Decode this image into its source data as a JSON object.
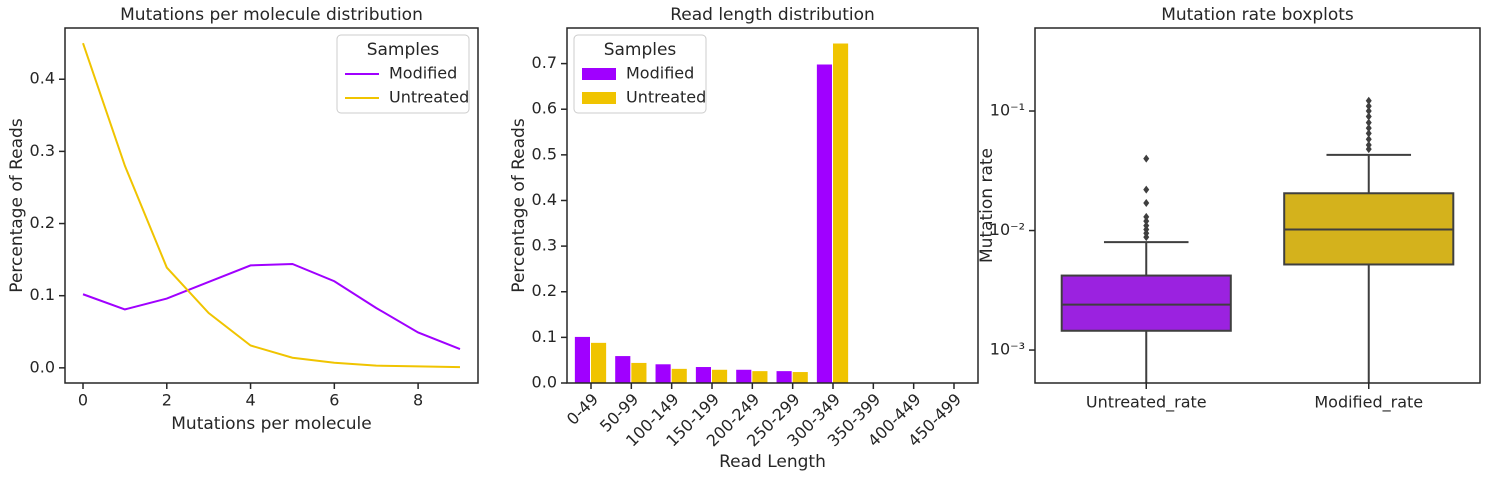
{
  "chart_data": [
    {
      "type": "line",
      "title": "Mutations per molecule distribution",
      "xlabel": "Mutations per molecule",
      "ylabel": "Percentage of Reads",
      "x": [
        0,
        1,
        2,
        3,
        4,
        5,
        6,
        7,
        8,
        9
      ],
      "series": [
        {
          "name": "Modified",
          "color": "#a000ff",
          "values": [
            0.102,
            0.081,
            0.096,
            0.119,
            0.142,
            0.144,
            0.12,
            0.083,
            0.049,
            0.026
          ]
        },
        {
          "name": "Untreated",
          "color": "#f0c400",
          "values": [
            0.45,
            0.28,
            0.139,
            0.076,
            0.031,
            0.014,
            0.007,
            0.003,
            0.002,
            0.001
          ]
        }
      ],
      "xlim": [
        -0.43,
        9.43
      ],
      "xticks": [
        0,
        2,
        4,
        6,
        8
      ],
      "ylim": [
        -0.021,
        0.471
      ],
      "yticks": [
        {
          "value": 0,
          "label": "0.0"
        },
        0.1,
        0.2,
        0.3,
        0.4
      ],
      "legend_title": "Samples",
      "legend": "upper right"
    },
    {
      "type": "bar",
      "title": "Read length distribution",
      "xlabel": "Read Length",
      "ylabel": "Percentage of Reads",
      "categories": [
        "0-49",
        "50-99",
        "100-149",
        "150-199",
        "200-249",
        "250-299",
        "300-349",
        "350-399",
        "400-449",
        "450-499"
      ],
      "series": [
        {
          "name": "Modified",
          "color": "#a000ff",
          "values": [
            0.101,
            0.059,
            0.041,
            0.035,
            0.029,
            0.026,
            0.698,
            0,
            0,
            0
          ]
        },
        {
          "name": "Untreated",
          "color": "#f0c400",
          "values": [
            0.088,
            0.044,
            0.031,
            0.029,
            0.026,
            0.024,
            0.744,
            0,
            0,
            0
          ]
        }
      ],
      "ylim": [
        0,
        0.778
      ],
      "yticks": [
        {
          "value": 0,
          "label": "0.0"
        },
        0.1,
        0.2,
        0.3,
        0.4,
        0.5,
        0.6,
        0.7
      ],
      "legend_title": "Samples",
      "legend": "upper left"
    },
    {
      "type": "box",
      "title": "Mutation rate boxplots",
      "ylabel": "Mutation rate",
      "log_y": true,
      "categories": [
        "Untreated_rate",
        "Modified_rate"
      ],
      "colors": [
        "#9b22e0",
        "#d4b21c"
      ],
      "boxes": [
        {
          "whisker_low": 0.0004,
          "q1": 0.00145,
          "median": 0.0024,
          "q3": 0.0042,
          "whisker_high": 0.008,
          "outliers": [
            0.0088,
            0.0095,
            0.0102,
            0.011,
            0.012,
            0.013,
            0.017,
            0.022,
            0.04
          ]
        },
        {
          "whisker_low": 0.0004,
          "q1": 0.0052,
          "median": 0.0102,
          "q3": 0.0205,
          "whisker_high": 0.043,
          "outliers": [
            0.048,
            0.052,
            0.058,
            0.065,
            0.072,
            0.08,
            0.09,
            0.1,
            0.11,
            0.122
          ]
        }
      ],
      "ylim": [
        0.00053,
        0.495
      ],
      "yticks": [
        {
          "value": 0.001,
          "label": "10⁻³"
        },
        {
          "value": 0.01,
          "label": "10⁻²"
        },
        {
          "value": 0.1,
          "label": "10⁻¹"
        }
      ]
    }
  ]
}
